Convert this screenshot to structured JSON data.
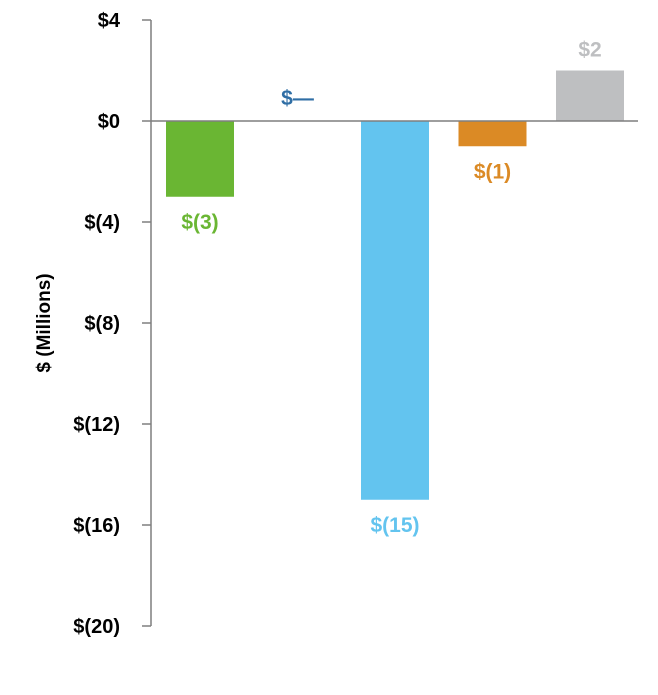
{
  "chart_data": {
    "type": "bar",
    "title": "",
    "xlabel": "",
    "ylabel": "$ (Millions)",
    "ylim": [
      -20,
      4
    ],
    "yticks": [
      4,
      0,
      -4,
      -8,
      -12,
      -16,
      -20
    ],
    "ytick_labels": [
      "$4",
      "$0",
      "$(4)",
      "$(8)",
      "$(12)",
      "$(16)",
      "$(20)"
    ],
    "grid": false,
    "legend": "none",
    "categories": [
      "",
      "",
      "",
      "",
      ""
    ],
    "values": [
      -3,
      0,
      -15,
      -1,
      2
    ],
    "data_labels": [
      "$(3)",
      "$—",
      "$(15)",
      "$(1)",
      "$2"
    ],
    "colors": [
      "#6ab633",
      "#2f6ea5",
      "#63c4ef",
      "#db8a25",
      "#bebfc1"
    ]
  }
}
